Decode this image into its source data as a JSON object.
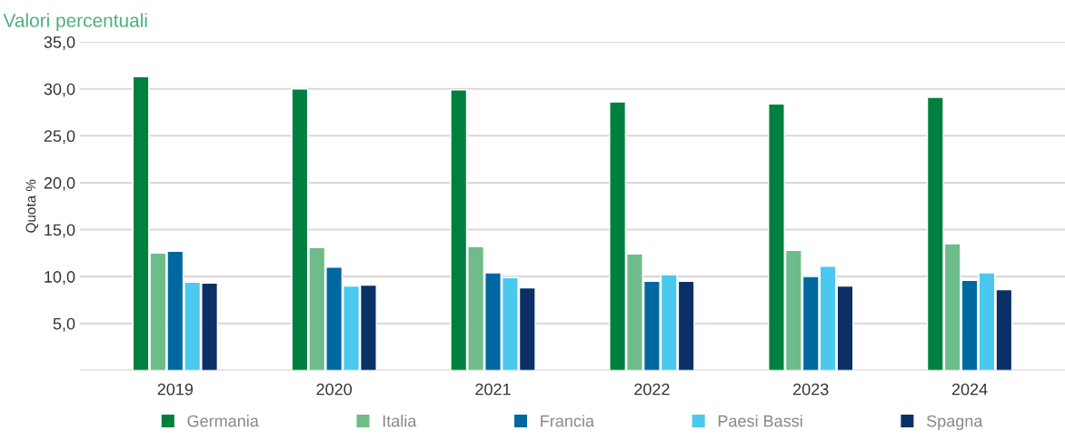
{
  "chart_data": {
    "type": "bar",
    "title": "Valori percentuali",
    "ylabel": "Quota %",
    "categories": [
      "2019",
      "2020",
      "2021",
      "2022",
      "2023",
      "2024"
    ],
    "series": [
      {
        "name": "Germania",
        "color": "#00803f",
        "values": [
          31.3,
          30.0,
          29.9,
          28.6,
          28.4,
          29.1
        ]
      },
      {
        "name": "Italia",
        "color": "#6dbc89",
        "values": [
          12.5,
          13.1,
          13.2,
          12.4,
          12.8,
          13.5
        ]
      },
      {
        "name": "Francia",
        "color": "#0068a0",
        "values": [
          12.7,
          11.0,
          10.4,
          9.5,
          10.0,
          9.6
        ]
      },
      {
        "name": "Paesi Bassi",
        "color": "#4bc8ee",
        "values": [
          9.4,
          9.0,
          9.9,
          10.2,
          11.1,
          10.4
        ]
      },
      {
        "name": "Spagna",
        "color": "#0a3066",
        "values": [
          9.3,
          9.1,
          8.8,
          9.5,
          9.0,
          8.6
        ]
      }
    ],
    "ylim": [
      0,
      35
    ],
    "yticks": [
      {
        "value": 0,
        "label": null
      },
      {
        "value": 5,
        "label": "5,0"
      },
      {
        "value": 10,
        "label": "10,0"
      },
      {
        "value": 15,
        "label": "15,0"
      },
      {
        "value": 20,
        "label": "20,0"
      },
      {
        "value": 25,
        "label": "25,0"
      },
      {
        "value": 30,
        "label": "30,0"
      },
      {
        "value": 35,
        "label": "35,0"
      }
    ],
    "grid": "y",
    "legend": "bottom"
  }
}
